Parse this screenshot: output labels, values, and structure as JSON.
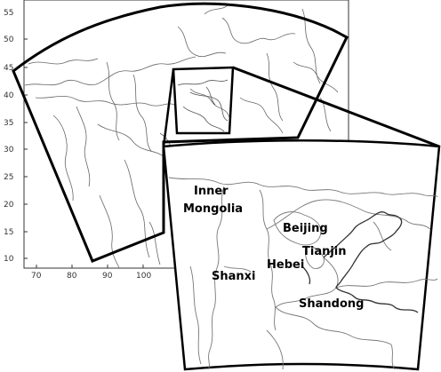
{
  "map": {
    "y_ticks": [
      "55",
      "50",
      "45",
      "40",
      "35",
      "30",
      "25",
      "20",
      "15",
      "10"
    ],
    "x_ticks": [
      "70",
      "80",
      "90",
      "100"
    ],
    "regions": {
      "inner_mongolia_line1": "Inner",
      "inner_mongolia_line2": "Mongolia",
      "beijing": "Beijing",
      "tianjin": "Tianjin",
      "hebei": "Hebei",
      "shanxi": "Shanxi",
      "shandong": "Shandong"
    },
    "colors": {
      "domain_outline": "#000000",
      "boundary_lines": "#666666",
      "background": "#ffffff"
    }
  }
}
